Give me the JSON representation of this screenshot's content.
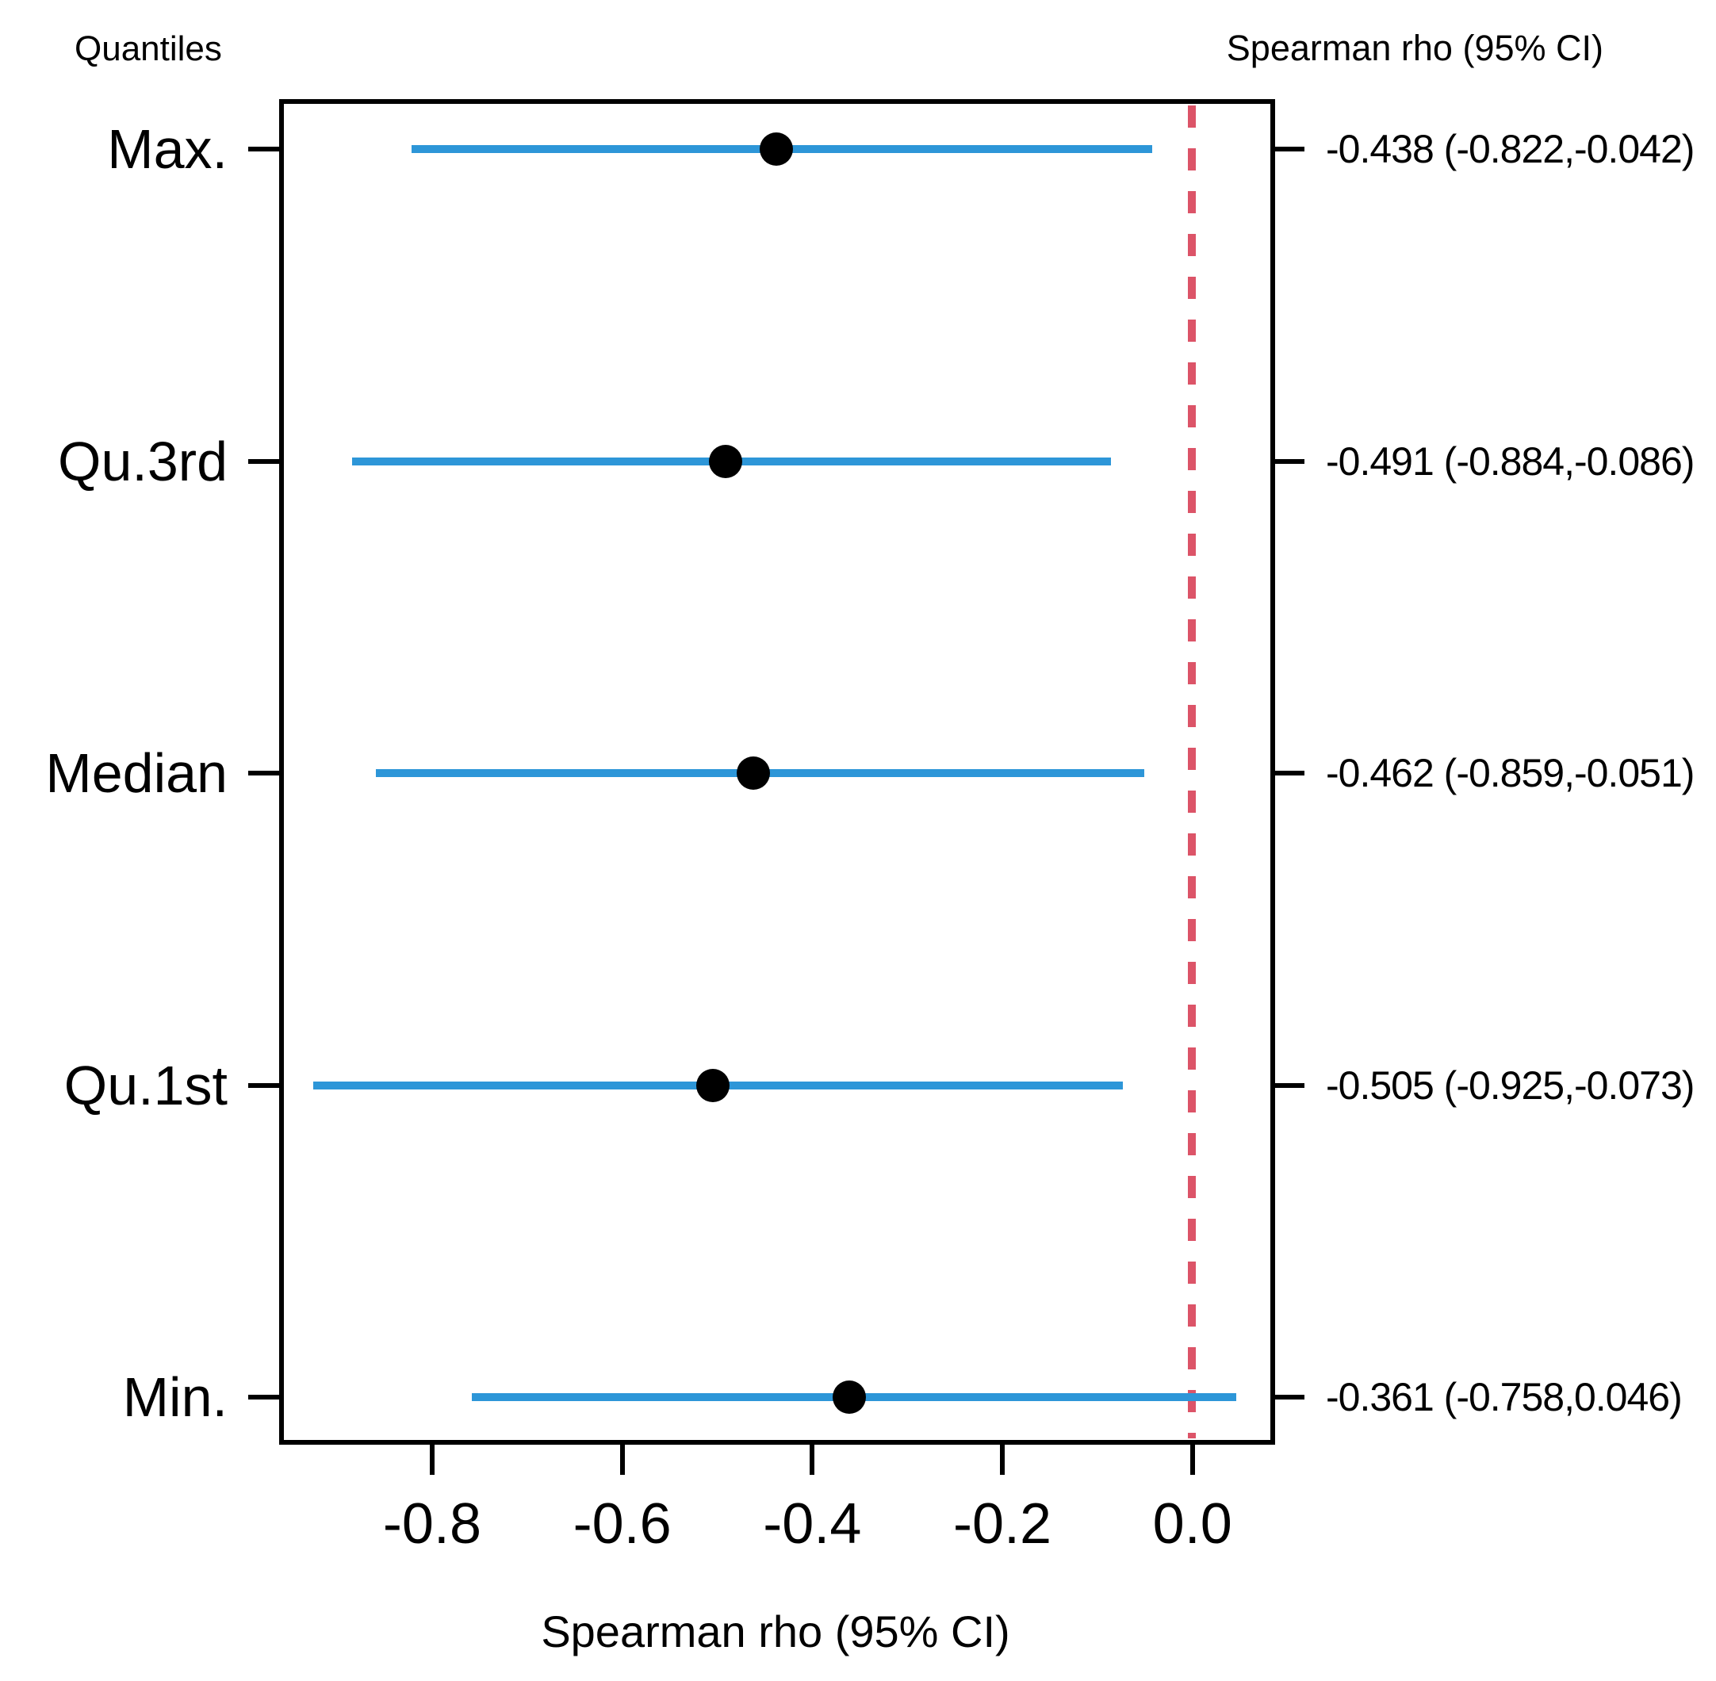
{
  "header": {
    "left_title": "Quantiles",
    "right_title": "Spearman rho (95% CI)"
  },
  "chart_data": {
    "type": "scatter",
    "subtype": "forest-plot",
    "title": "",
    "xlabel": "Spearman rho (95% CI)",
    "ylabel": "Quantiles",
    "xlim": [
      -0.961,
      0.087
    ],
    "grid": false,
    "legend": "none",
    "reference_line_x": 0,
    "categories": [
      "Max.",
      "Qu.3rd",
      "Median",
      "Qu.1st",
      "Min."
    ],
    "series": [
      {
        "name": "Spearman rho (95% CI)",
        "values": [
          -0.438,
          -0.491,
          -0.462,
          -0.505,
          -0.361
        ],
        "ci_low": [
          -0.822,
          -0.884,
          -0.859,
          -0.925,
          -0.758
        ],
        "ci_high": [
          -0.042,
          -0.086,
          -0.051,
          -0.073,
          0.046
        ]
      }
    ],
    "value_labels": [
      "-0.438 (-0.822,-0.042)",
      "-0.491 (-0.884,-0.086)",
      "-0.462 (-0.859,-0.051)",
      "-0.505 (-0.925,-0.073)",
      "-0.361 (-0.758,0.046)"
    ],
    "xticks": [
      -0.8,
      -0.6,
      -0.4,
      -0.2,
      0
    ],
    "xtick_labels": [
      "-0.8",
      "-0.6",
      "-0.4",
      "-0.2",
      "0.0"
    ]
  },
  "colors": {
    "ci_line": "#2D96D8",
    "point": "#000000",
    "reference_line": "#DC5468",
    "frame": "#000000",
    "text": "#000000",
    "background": "#FFFFFF"
  }
}
